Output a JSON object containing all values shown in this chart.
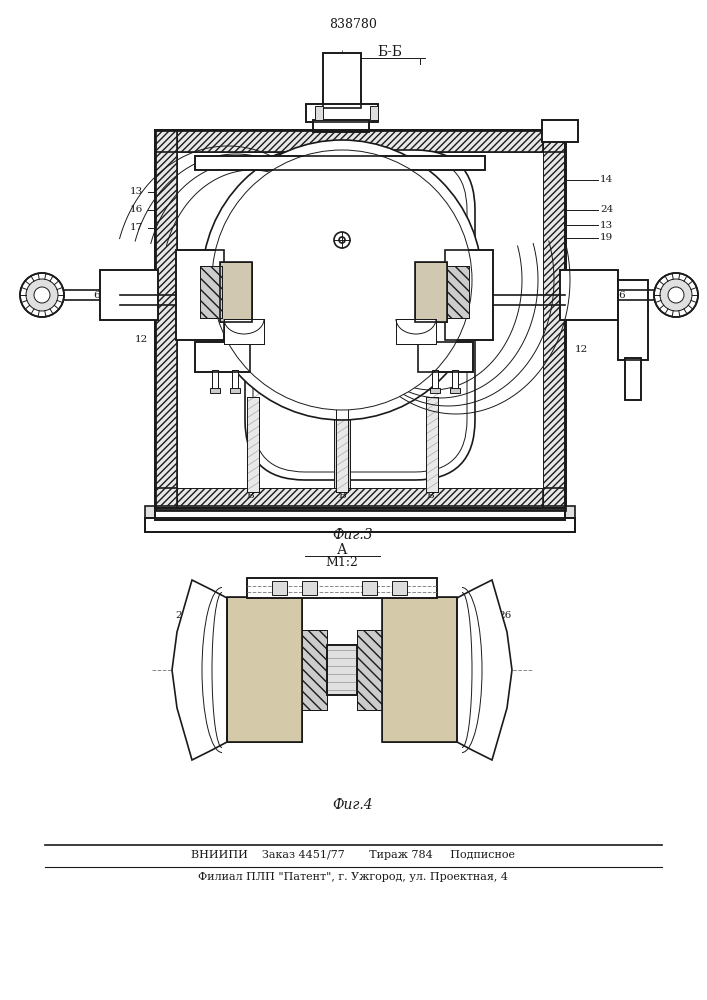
{
  "patent_number": "838780",
  "fig3_label": "Б-Б",
  "fig3_caption": "Фиг.3",
  "fig4_label": "А",
  "fig4_scale": "М1:2",
  "fig4_caption": "Фиг.4",
  "footer_line1": "ВНИИПИ    Заказ 4451/77       Тираж 784     Подписное",
  "footer_line2": "Филиал ПЛП \"Патент\", г. Ужгород, ул. Проектная, 4",
  "bg_color": "#ffffff",
  "line_color": "#1a1a1a"
}
